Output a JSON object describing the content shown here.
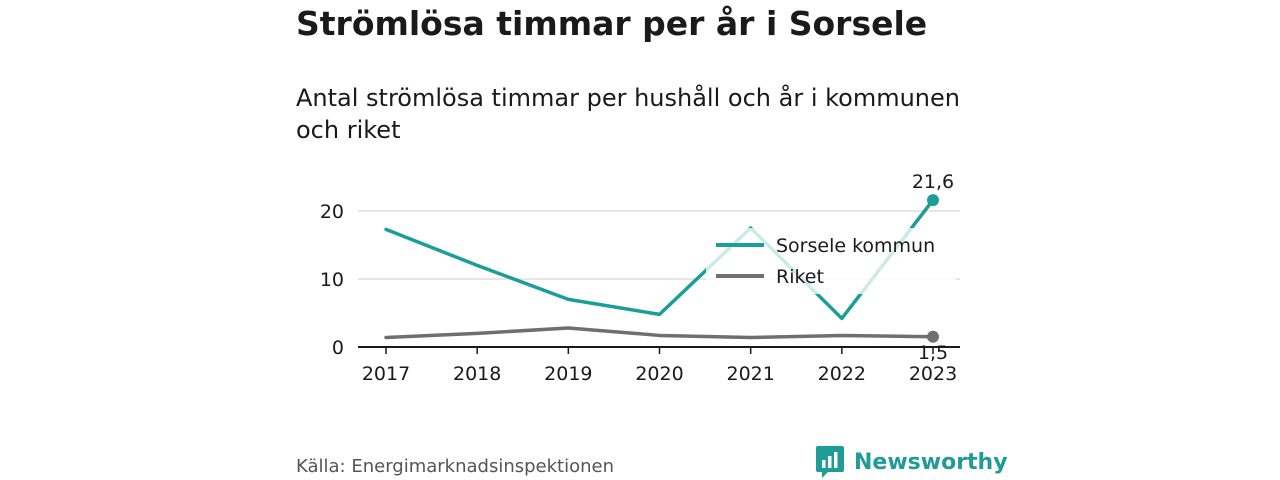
{
  "title": "Strömlösa timmar per år i Sorsele",
  "subtitle": "Antal strömlösa timmar per hushåll och år i kommunen och riket",
  "source": "Källa: Energimarknadsinspektionen",
  "brand": {
    "name": "Newsworthy",
    "color": "#1f9b98",
    "icon": "bar-chart-logo-icon"
  },
  "chart_data": {
    "type": "line",
    "categories": [
      "2017",
      "2018",
      "2019",
      "2020",
      "2021",
      "2022",
      "2023"
    ],
    "ylim": [
      0,
      20
    ],
    "yticks": [
      0,
      10,
      20
    ],
    "grid": true,
    "legend_position": "top-right",
    "series": [
      {
        "name": "Sorsele kommun",
        "color": "#1a9e97",
        "values": [
          17.3,
          12.0,
          7.0,
          4.8,
          17.5,
          4.2,
          21.6
        ],
        "end_label": "21,6"
      },
      {
        "name": "Riket",
        "color": "#6e6e76",
        "values": [
          1.4,
          2.0,
          2.8,
          1.7,
          1.4,
          1.7,
          1.5
        ],
        "end_label": "1,5"
      }
    ]
  }
}
